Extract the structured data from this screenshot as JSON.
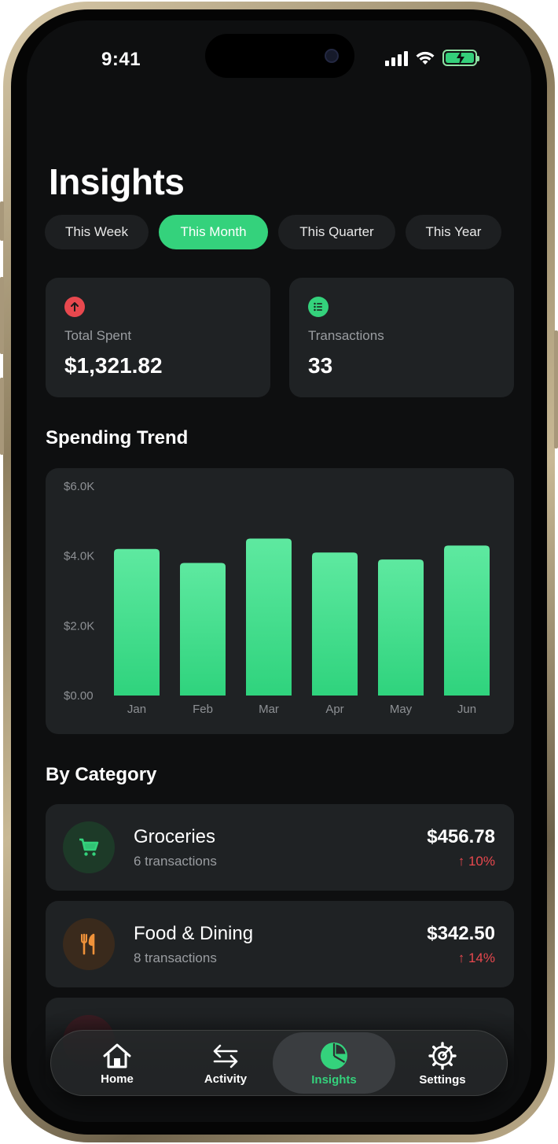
{
  "status_bar": {
    "time": "9:41"
  },
  "header": {
    "title": "Insights"
  },
  "periods": [
    {
      "label": "This Week"
    },
    {
      "label": "This Month"
    },
    {
      "label": "This Quarter"
    },
    {
      "label": "This Year"
    }
  ],
  "selected_period": "This Month",
  "stats": {
    "total_spent": {
      "label": "Total Spent",
      "value": "$1,321.82"
    },
    "transactions": {
      "label": "Transactions",
      "value": "33"
    }
  },
  "spending_trend": {
    "title": "Spending Trend",
    "chart_data": {
      "type": "bar",
      "categories": [
        "Jan",
        "Feb",
        "Mar",
        "Apr",
        "May",
        "Jun"
      ],
      "values": [
        4200,
        3800,
        4500,
        4100,
        3900,
        4300
      ],
      "ylim": [
        0,
        6000
      ],
      "yticks": [
        "$0.00",
        "$2.0K",
        "$4.0K",
        "$6.0K"
      ],
      "ytick_values": [
        0,
        2000,
        4000,
        6000
      ],
      "bar_color": "#34d27c",
      "grid": false
    }
  },
  "by_category": {
    "title": "By Category",
    "items": [
      {
        "name": "Groceries",
        "sub": "6 transactions",
        "amount": "$456.78",
        "change": "↑ 10%",
        "icon": "cart-icon",
        "color": "#34d27c"
      },
      {
        "name": "Food & Dining",
        "sub": "8 transactions",
        "amount": "$342.50",
        "change": "↑ 14%",
        "icon": "fork-knife-icon",
        "color": "#f0923a"
      }
    ]
  },
  "tabbar": {
    "items": [
      {
        "label": "Home",
        "icon": "house-icon"
      },
      {
        "label": "Activity",
        "icon": "arrows-exchange-icon"
      },
      {
        "label": "Insights",
        "icon": "pie-chart-icon"
      },
      {
        "label": "Settings",
        "icon": "gear-icon"
      }
    ],
    "active": "Insights"
  },
  "colors": {
    "accent": "#34d27c",
    "negative": "#e8484e",
    "card": "#1f2224",
    "background": "#0e0f10"
  }
}
